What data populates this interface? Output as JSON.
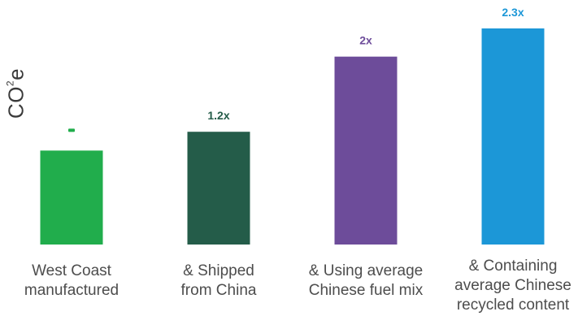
{
  "chart_data": {
    "type": "bar",
    "ylabel": "CO",
    "ylabel_superscript": "2",
    "ylabel_suffix": "e",
    "categories": [
      "West Coast\nmanufactured",
      "& Shipped\nfrom China",
      "& Using average\nChinese fuel mix",
      "& Containing\naverage Chinese\nrecycled content"
    ],
    "values": [
      1.0,
      1.2,
      2.0,
      2.3
    ],
    "data_labels": [
      "-",
      "1.2x",
      "2x",
      "2.3x"
    ],
    "colors": [
      "#21ad4c",
      "#245c49",
      "#6d4c9a",
      "#1c97d7"
    ],
    "ylim": [
      0,
      2.3
    ],
    "grid": false,
    "legend": "none"
  }
}
